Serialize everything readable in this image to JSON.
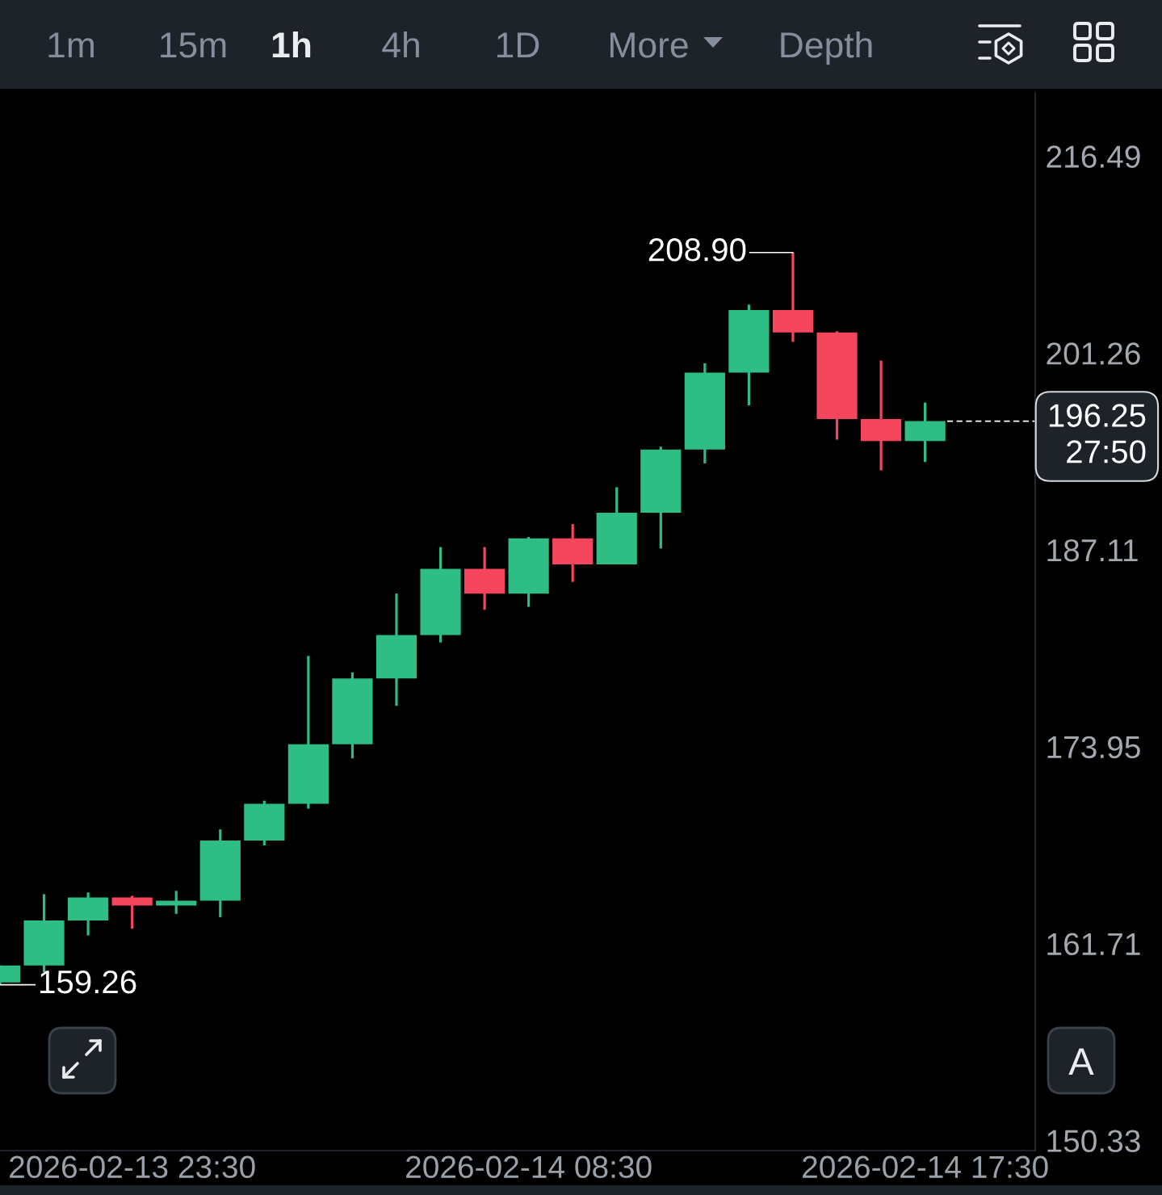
{
  "chart_data": {
    "type": "candlestick",
    "x": [
      "2026-02-13T20:30",
      "2026-02-13T21:30",
      "2026-02-13T22:30",
      "2026-02-13T23:30",
      "2026-02-14T00:30",
      "2026-02-14T01:30",
      "2026-02-14T02:30",
      "2026-02-14T03:30",
      "2026-02-14T04:30",
      "2026-02-14T05:30",
      "2026-02-14T06:30",
      "2026-02-14T07:30",
      "2026-02-14T08:30",
      "2026-02-14T09:30",
      "2026-02-14T10:30",
      "2026-02-14T11:30",
      "2026-02-14T12:30",
      "2026-02-14T13:30",
      "2026-02-14T14:30",
      "2026-02-14T15:30",
      "2026-02-14T16:30",
      "2026-02-14T17:30"
    ],
    "ohlc": [
      [
        159.4,
        160.4,
        159.26,
        160.4
      ],
      [
        160.4,
        164.7,
        160.0,
        163.1
      ],
      [
        163.1,
        164.8,
        162.2,
        164.5
      ],
      [
        164.5,
        164.6,
        162.6,
        164.0
      ],
      [
        164.0,
        164.9,
        163.5,
        164.3
      ],
      [
        164.3,
        168.7,
        163.3,
        168.0
      ],
      [
        168.0,
        170.5,
        167.7,
        170.3
      ],
      [
        170.3,
        179.9,
        170.0,
        174.1
      ],
      [
        174.1,
        178.8,
        173.2,
        178.4
      ],
      [
        178.4,
        184.1,
        176.6,
        181.3
      ],
      [
        181.3,
        187.3,
        180.8,
        185.8
      ],
      [
        185.8,
        187.3,
        183.0,
        184.1
      ],
      [
        184.1,
        188.0,
        183.2,
        187.9
      ],
      [
        187.9,
        188.9,
        184.9,
        186.1
      ],
      [
        186.1,
        191.5,
        186.1,
        189.7
      ],
      [
        189.7,
        194.4,
        187.2,
        194.2
      ],
      [
        194.2,
        200.5,
        193.2,
        199.8
      ],
      [
        199.8,
        204.9,
        197.4,
        204.5
      ],
      [
        204.5,
        208.9,
        202.1,
        202.8
      ],
      [
        202.8,
        202.9,
        194.9,
        196.4
      ],
      [
        196.4,
        200.7,
        192.7,
        194.8
      ],
      [
        194.8,
        197.6,
        193.3,
        196.25
      ]
    ],
    "colors": [
      "#2ebd85",
      "#2ebd85",
      "#2ebd85",
      "#f6465d",
      "#2ebd85",
      "#2ebd85",
      "#2ebd85",
      "#2ebd85",
      "#2ebd85",
      "#2ebd85",
      "#2ebd85",
      "#f6465d",
      "#2ebd85",
      "#f6465d",
      "#2ebd85",
      "#2ebd85",
      "#2ebd85",
      "#2ebd85",
      "#f6465d",
      "#f6465d",
      "#f6465d",
      "#2ebd85"
    ],
    "log": "y",
    "xlim": [
      "2026-02-13T20:30",
      "2026-02-14T20:00"
    ],
    "xticks": [
      {
        "value": "2026-02-13T23:30",
        "label": "2026-02-13 23:30"
      },
      {
        "value": "2026-02-14T08:30",
        "label": "2026-02-14 08:30"
      },
      {
        "value": "2026-02-14T17:30",
        "label": "2026-02-14 17:30"
      }
    ],
    "ylim": [
      149.77,
      221.63
    ],
    "yticks": [
      150.33,
      161.71,
      173.95,
      187.11,
      201.26,
      216.49
    ],
    "ref_lines": [
      {
        "axis": "y",
        "value": 196.25,
        "label": "196.25\n27:50",
        "line_style": "dashed",
        "color": "#ffffff"
      }
    ],
    "annotations": [
      {
        "text": "208.90",
        "x": "2026-02-14T14:30",
        "y": 208.9
      },
      {
        "text": "159.26",
        "x": "2026-02-13T20:30",
        "y": 159.26
      },
      "1m",
      "15m",
      "1h",
      "4h",
      "1D",
      "More",
      "Depth",
      "A"
    ]
  }
}
